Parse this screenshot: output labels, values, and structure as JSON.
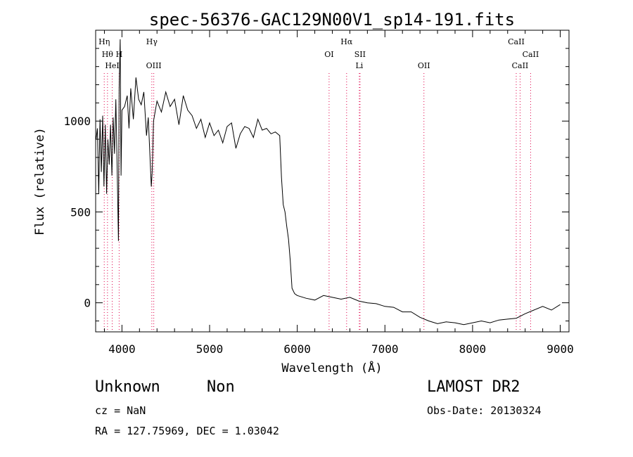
{
  "chart_data": {
    "type": "line",
    "title": "spec-56376-GAC129N00V1_sp14-191.fits",
    "xlabel": "Wavelength (Å)",
    "ylabel": "Flux (relative)",
    "xlim": [
      3700,
      9100
    ],
    "ylim": [
      -160,
      1500
    ],
    "xticks": [
      4000,
      5000,
      6000,
      7000,
      8000,
      9000
    ],
    "yticks": [
      0,
      500,
      1000
    ],
    "grid": false,
    "line_color": "#000000",
    "marker_color": "#e0004a",
    "series": [
      {
        "values": [
          [
            3705,
            900
          ],
          [
            3720,
            960
          ],
          [
            3735,
            600
          ],
          [
            3750,
            1010
          ],
          [
            3765,
            720
          ],
          [
            3780,
            1030
          ],
          [
            3795,
            640
          ],
          [
            3810,
            980
          ],
          [
            3825,
            600
          ],
          [
            3840,
            900
          ],
          [
            3855,
            760
          ],
          [
            3870,
            980
          ],
          [
            3885,
            700
          ],
          [
            3900,
            1020
          ],
          [
            3915,
            820
          ],
          [
            3930,
            1120
          ],
          [
            3945,
            760
          ],
          [
            3960,
            340
          ],
          [
            3968,
            1180
          ],
          [
            3980,
            1450
          ],
          [
            3990,
            700
          ],
          [
            4000,
            1060
          ],
          [
            4030,
            1080
          ],
          [
            4060,
            1140
          ],
          [
            4080,
            960
          ],
          [
            4100,
            1180
          ],
          [
            4130,
            1010
          ],
          [
            4160,
            1240
          ],
          [
            4190,
            1120
          ],
          [
            4220,
            1090
          ],
          [
            4250,
            1160
          ],
          [
            4280,
            920
          ],
          [
            4300,
            1020
          ],
          [
            4320,
            800
          ],
          [
            4335,
            640
          ],
          [
            4345,
            720
          ],
          [
            4360,
            1000
          ],
          [
            4400,
            1110
          ],
          [
            4450,
            1050
          ],
          [
            4500,
            1160
          ],
          [
            4550,
            1080
          ],
          [
            4600,
            1120
          ],
          [
            4650,
            980
          ],
          [
            4700,
            1140
          ],
          [
            4750,
            1060
          ],
          [
            4800,
            1030
          ],
          [
            4850,
            960
          ],
          [
            4900,
            1010
          ],
          [
            4950,
            910
          ],
          [
            5000,
            990
          ],
          [
            5050,
            920
          ],
          [
            5100,
            950
          ],
          [
            5150,
            880
          ],
          [
            5200,
            970
          ],
          [
            5250,
            990
          ],
          [
            5300,
            850
          ],
          [
            5350,
            930
          ],
          [
            5400,
            970
          ],
          [
            5450,
            960
          ],
          [
            5500,
            910
          ],
          [
            5550,
            1010
          ],
          [
            5600,
            950
          ],
          [
            5650,
            960
          ],
          [
            5700,
            930
          ],
          [
            5750,
            940
          ],
          [
            5800,
            920
          ],
          [
            5820,
            690
          ],
          [
            5840,
            540
          ],
          [
            5860,
            500
          ],
          [
            5880,
            420
          ],
          [
            5900,
            350
          ],
          [
            5920,
            230
          ],
          [
            5940,
            80
          ],
          [
            5970,
            50
          ],
          [
            6000,
            40
          ],
          [
            6100,
            25
          ],
          [
            6200,
            15
          ],
          [
            6300,
            40
          ],
          [
            6400,
            30
          ],
          [
            6500,
            20
          ],
          [
            6600,
            30
          ],
          [
            6700,
            10
          ],
          [
            6800,
            0
          ],
          [
            6900,
            -5
          ],
          [
            7000,
            -20
          ],
          [
            7100,
            -25
          ],
          [
            7200,
            -50
          ],
          [
            7300,
            -50
          ],
          [
            7400,
            -80
          ],
          [
            7500,
            -100
          ],
          [
            7600,
            -115
          ],
          [
            7700,
            -105
          ],
          [
            7800,
            -110
          ],
          [
            7900,
            -120
          ],
          [
            8000,
            -110
          ],
          [
            8100,
            -100
          ],
          [
            8200,
            -110
          ],
          [
            8300,
            -95
          ],
          [
            8400,
            -90
          ],
          [
            8500,
            -85
          ],
          [
            8600,
            -60
          ],
          [
            8700,
            -40
          ],
          [
            8800,
            -20
          ],
          [
            8900,
            -40
          ],
          [
            9000,
            -10
          ]
        ]
      }
    ],
    "line_markers": [
      {
        "wavelength": 3798,
        "label": "Hη",
        "row": 0
      },
      {
        "wavelength": 3835,
        "label": "Hθ",
        "row": 1
      },
      {
        "wavelength": 3889,
        "label": "HeI",
        "row": 2
      },
      {
        "wavelength": 3968,
        "label": "H",
        "row": 1
      },
      {
        "wavelength": 4341,
        "label": "Hγ",
        "row": 0
      },
      {
        "wavelength": 4363,
        "label": "OIII",
        "row": 2
      },
      {
        "wavelength": 6363,
        "label": "OI",
        "row": 1
      },
      {
        "wavelength": 6563,
        "label": "Hα",
        "row": 0
      },
      {
        "wavelength": 6716,
        "label": "SII",
        "row": 1
      },
      {
        "wavelength": 6708,
        "label": "Li",
        "row": 2
      },
      {
        "wavelength": 7445,
        "label": "OII",
        "row": 2
      },
      {
        "wavelength": 8498,
        "label": "CaII",
        "row": 0
      },
      {
        "wavelength": 8542,
        "label": "CaII",
        "row": 2
      },
      {
        "wavelength": 8662,
        "label": "CaII",
        "row": 1
      }
    ]
  },
  "info": {
    "class": "Unknown",
    "subclass": "Non",
    "survey": "LAMOST DR2",
    "redshift": "cz = NaN",
    "obs_date": "Obs-Date: 20130324",
    "coords": "RA = 127.75969, DEC =   1.03042"
  }
}
